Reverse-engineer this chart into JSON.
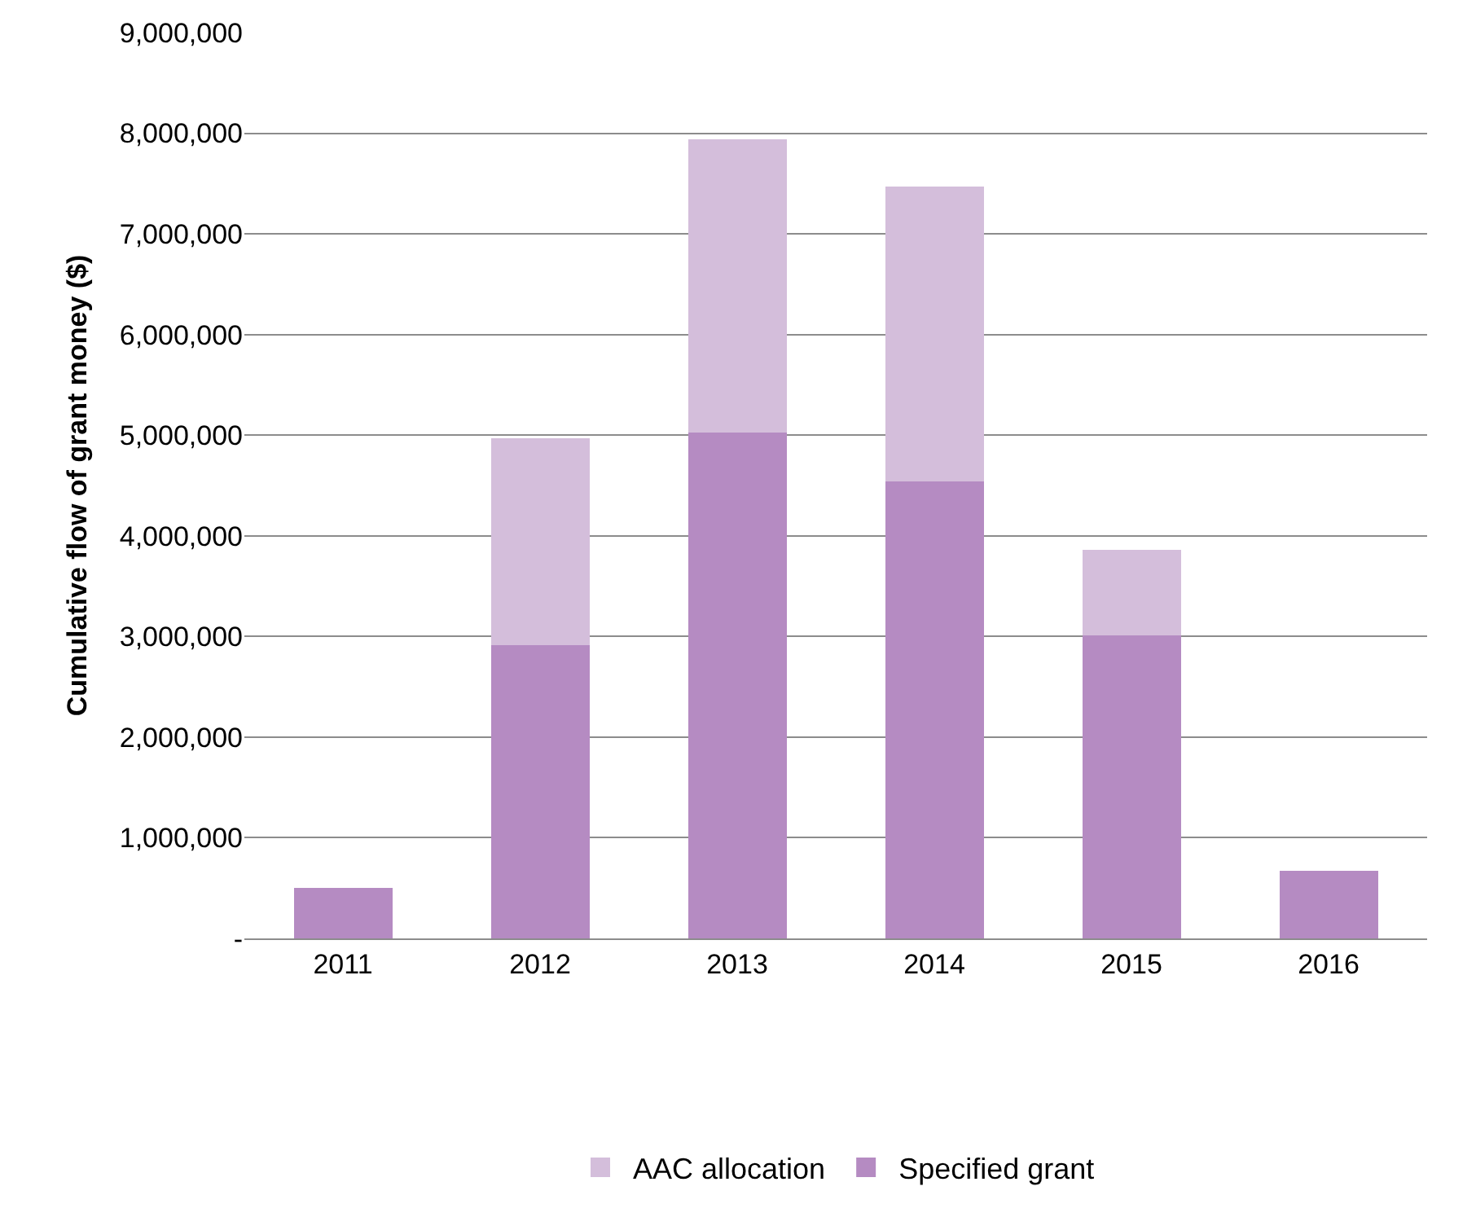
{
  "chart_data": {
    "type": "bar",
    "stacked": true,
    "ylabel": "Cumulative flow of grant money ($)",
    "categories": [
      "2011",
      "2012",
      "2013",
      "2014",
      "2015",
      "2016"
    ],
    "series": [
      {
        "name": "Specified grant",
        "color": "#b58bc2",
        "values": [
          500000,
          2910000,
          5030000,
          4540000,
          3010000,
          670000
        ]
      },
      {
        "name": "AAC allocation",
        "color": "#d4bedb",
        "values": [
          0,
          2060000,
          2910000,
          2930000,
          850000,
          0
        ]
      }
    ],
    "ylim": [
      0,
      9000000
    ],
    "yticks": [
      {
        "value": 0,
        "label": "-"
      },
      {
        "value": 1000000,
        "label": "1,000,000"
      },
      {
        "value": 2000000,
        "label": "2,000,000"
      },
      {
        "value": 3000000,
        "label": "3,000,000"
      },
      {
        "value": 4000000,
        "label": "4,000,000"
      },
      {
        "value": 5000000,
        "label": "5,000,000"
      },
      {
        "value": 6000000,
        "label": "6,000,000"
      },
      {
        "value": 7000000,
        "label": "7,000,000"
      },
      {
        "value": 8000000,
        "label": "8,000,000"
      },
      {
        "value": 9000000,
        "label": "9,000,000"
      }
    ],
    "grid": "y",
    "legend": "bottom"
  }
}
